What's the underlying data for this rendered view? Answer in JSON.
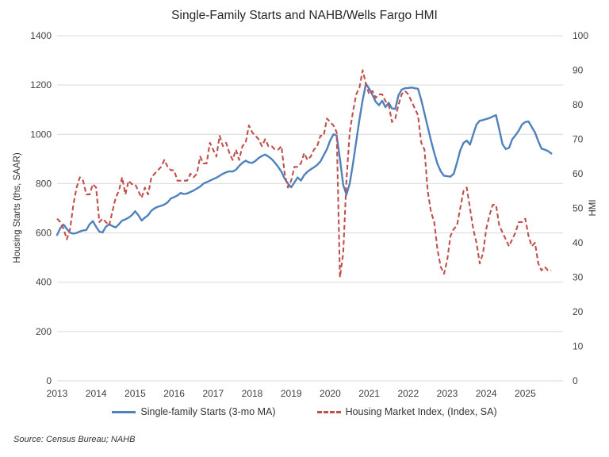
{
  "title": "Single-Family Starts and NAHB/Wells Fargo HMI",
  "source_note": "Source: Census Bureau; NAHB",
  "colors": {
    "starts_blue": "#4F81BD",
    "hmi_red": "#C0504D",
    "gridline": "#D9D9D9",
    "text": "#404040",
    "title_text": "#262626"
  },
  "legend": [
    {
      "label": "Single-family Starts (3-mo MA)",
      "style": "solid"
    },
    {
      "label": "Housing Market Index, (Index, SA)",
      "style": "dashed"
    }
  ],
  "chart_data": {
    "type": "line",
    "title": "Single-Family Starts and NAHB/Wells Fargo HMI",
    "grid": "horizontal",
    "legend_position": "bottom",
    "frequency": "monthly",
    "left_axis": {
      "title": "Housing Starts (ths, SAAR)",
      "min": 0,
      "max": 1400,
      "ticks": [
        0,
        200,
        400,
        600,
        800,
        1000,
        1200,
        1400
      ]
    },
    "right_axis": {
      "title": "HMI",
      "min": 0,
      "max": 100,
      "ticks": [
        0,
        10,
        20,
        30,
        40,
        50,
        60,
        70,
        80,
        90,
        100
      ]
    },
    "x_axis": {
      "start_month": "2013-01",
      "end_month": "2025-09",
      "tick_labels": [
        "2013",
        "2014",
        "2015",
        "2016",
        "2017",
        "2018",
        "2019",
        "2020",
        "2021",
        "2022",
        "2023",
        "2024",
        "2025"
      ]
    },
    "series": [
      {
        "name": "Single-family Starts (3-mo MA)",
        "axis": "left",
        "line": "solid",
        "color": "#4F81BD",
        "start_month": "2013-01",
        "values": [
          592,
          620,
          634,
          616,
          601,
          597,
          600,
          606,
          610,
          612,
          635,
          648,
          625,
          605,
          602,
          625,
          635,
          628,
          622,
          635,
          650,
          655,
          662,
          672,
          688,
          672,
          650,
          662,
          672,
          690,
          700,
          706,
          710,
          715,
          724,
          740,
          745,
          752,
          762,
          758,
          760,
          766,
          772,
          780,
          788,
          800,
          806,
          812,
          818,
          824,
          832,
          840,
          846,
          850,
          849,
          856,
          872,
          884,
          893,
          886,
          884,
          892,
          904,
          912,
          918,
          910,
          900,
          885,
          868,
          848,
          820,
          800,
          785,
          805,
          825,
          812,
          835,
          848,
          858,
          866,
          876,
          890,
          915,
          940,
          975,
          1000,
          995,
          900,
          795,
          755,
          800,
          880,
          970,
          1060,
          1140,
          1205,
          1185,
          1160,
          1132,
          1118,
          1136,
          1110,
          1128,
          1105,
          1103,
          1158,
          1181,
          1187,
          1188,
          1190,
          1187,
          1185,
          1140,
          1085,
          1030,
          975,
          925,
          880,
          850,
          832,
          830,
          828,
          840,
          885,
          935,
          965,
          975,
          958,
          1000,
          1040,
          1055,
          1058,
          1062,
          1066,
          1072,
          1078,
          1020,
          960,
          940,
          945,
          980,
          996,
          1015,
          1040,
          1050,
          1052,
          1030,
          1007,
          972,
          942,
          938,
          932,
          922
        ]
      },
      {
        "name": "Housing Market Index, (Index, SA)",
        "axis": "right",
        "line": "dashed",
        "color": "#C0504D",
        "start_month": "2013-01",
        "values": [
          47,
          46,
          44,
          41,
          44,
          51,
          56,
          59,
          58,
          54,
          54,
          57,
          56,
          46,
          47,
          46,
          45,
          49,
          53,
          55,
          59,
          54,
          58,
          57,
          57,
          55,
          53,
          56,
          54,
          59,
          60,
          61,
          62,
          64,
          62,
          61,
          61,
          58,
          58,
          58,
          58,
          60,
          59,
          60,
          65,
          63,
          63,
          69,
          67,
          65,
          71,
          68,
          69,
          66,
          64,
          67,
          64,
          68,
          69,
          74,
          72,
          71,
          70,
          68,
          70,
          68,
          68,
          67,
          67,
          68,
          60,
          56,
          58,
          62,
          62,
          63,
          66,
          64,
          65,
          67,
          68,
          71,
          71,
          76,
          75,
          74,
          72,
          30,
          37,
          58,
          72,
          78,
          83,
          85,
          90,
          86,
          83,
          84,
          82,
          83,
          83,
          81,
          80,
          75,
          76,
          80,
          83,
          84,
          83,
          81,
          79,
          77,
          69,
          67,
          55,
          49,
          46,
          38,
          33,
          31,
          35,
          42,
          44,
          45,
          50,
          55,
          56,
          50,
          44,
          40,
          34,
          37,
          44,
          48,
          51,
          51,
          45,
          43,
          41,
          39,
          41,
          43,
          46,
          46,
          47,
          42,
          39,
          40,
          34,
          32,
          33,
          32,
          32
        ]
      }
    ]
  }
}
